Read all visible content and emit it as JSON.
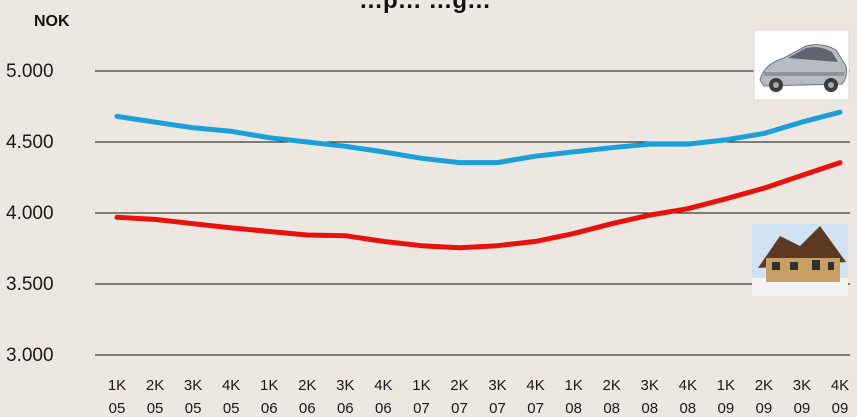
{
  "chart_data": {
    "type": "line",
    "title": "…p… …g…",
    "ylabel": "NOK",
    "ylim": [
      3000,
      5000
    ],
    "y_ticks": [
      5000,
      4500,
      4000,
      3500,
      3000
    ],
    "y_tick_labels": [
      "5.000",
      "4.500",
      "4.000",
      "3.500",
      "3.000"
    ],
    "grid": true,
    "categories": [
      [
        "1K",
        "05"
      ],
      [
        "2K",
        "05"
      ],
      [
        "3K",
        "05"
      ],
      [
        "4K",
        "05"
      ],
      [
        "1K",
        "06"
      ],
      [
        "2K",
        "06"
      ],
      [
        "3K",
        "06"
      ],
      [
        "4K",
        "06"
      ],
      [
        "1K",
        "07"
      ],
      [
        "2K",
        "07"
      ],
      [
        "3K",
        "07"
      ],
      [
        "4K",
        "07"
      ],
      [
        "1K",
        "08"
      ],
      [
        "2K",
        "08"
      ],
      [
        "3K",
        "08"
      ],
      [
        "4K",
        "08"
      ],
      [
        "1K",
        "09"
      ],
      [
        "2K",
        "09"
      ],
      [
        "3K",
        "09"
      ],
      [
        "4K",
        "09"
      ]
    ],
    "series": [
      {
        "color": "#1a9fdb",
        "icon": "car-icon",
        "values": [
          4680,
          4640,
          4600,
          4575,
          4530,
          4500,
          4470,
          4430,
          4385,
          4355,
          4355,
          4400,
          4430,
          4460,
          4485,
          4485,
          4515,
          4560,
          4640,
          4710
        ]
      },
      {
        "color": "#e8120c",
        "icon": "house-icon",
        "values": [
          3970,
          3955,
          3925,
          3895,
          3870,
          3845,
          3840,
          3800,
          3770,
          3755,
          3770,
          3800,
          3855,
          3925,
          3985,
          4030,
          4100,
          4175,
          4265,
          4355
        ]
      }
    ]
  }
}
